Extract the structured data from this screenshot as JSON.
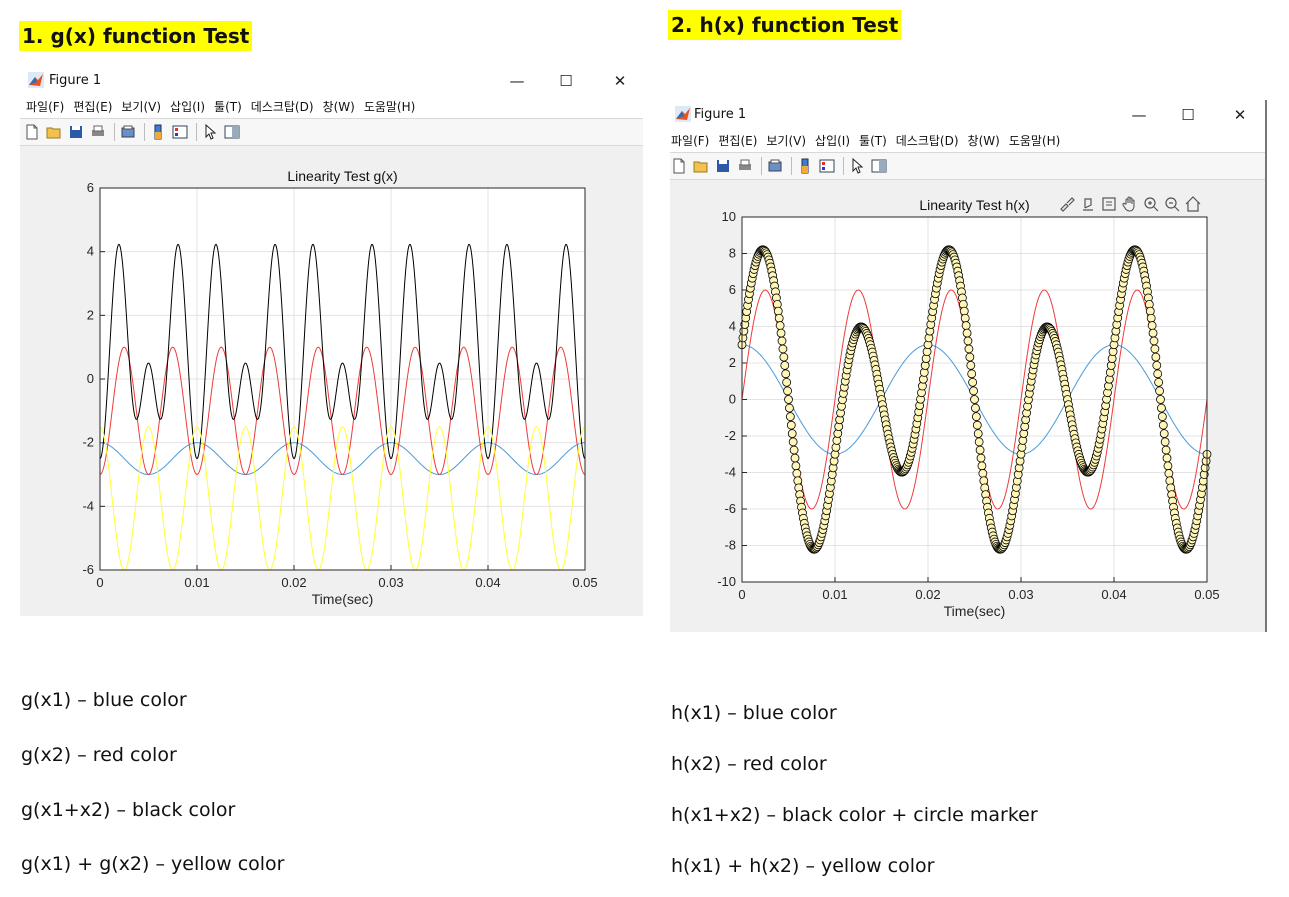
{
  "headings": {
    "g": "1. g(x) function Test",
    "h": "2. h(x) function Test"
  },
  "window": {
    "title": "Figure 1",
    "menu": [
      "파일(F)",
      "편집(E)",
      "보기(V)",
      "삽입(I)",
      "툴(T)",
      "데스크탑(D)",
      "창(W)",
      "도움말(H)"
    ],
    "controls": {
      "minimize": "—",
      "maximize": "☐",
      "close": "✕"
    },
    "toolbar_icons": [
      "new-file-icon",
      "open-folder-icon",
      "save-icon",
      "print-icon",
      "print-preview-icon",
      "colorbar-icon",
      "legend-icon",
      "pointer-icon",
      "property-inspector-icon"
    ],
    "axes_toolbar_icons": [
      "brush-icon",
      "data-tips-icon",
      "restore-icon",
      "pan-icon",
      "zoom-in-icon",
      "zoom-out-icon",
      "home-icon"
    ]
  },
  "chart_data": [
    {
      "type": "line",
      "title": "Linearity Test g(x)",
      "xlabel": "Time(sec)",
      "ylabel": "",
      "xlim": [
        0,
        0.05
      ],
      "ylim": [
        -6,
        6
      ],
      "xticks": [
        "0",
        "0.01",
        "0.02",
        "0.03",
        "0.04",
        "0.05"
      ],
      "yticks": [
        "-6",
        "-4",
        "-2",
        "0",
        "2",
        "4",
        "6"
      ],
      "grid": true,
      "series": [
        {
          "color": "#4a9ad8",
          "curve": {
            "kind": "sine",
            "offset": -2.5,
            "amplitude": 0.5,
            "frequency_hz": 100,
            "phase_deg": 90,
            "samples": 600
          }
        },
        {
          "color": "#ee3b3b",
          "curve": {
            "kind": "sine",
            "offset": -1.0,
            "amplitude": 2.0,
            "frequency_hz": 200,
            "phase_deg": -90,
            "samples": 600
          }
        },
        {
          "color": "#000000",
          "curve": {
            "kind": "sum",
            "offset": 0.75,
            "terms": [
              [
                0.5,
                100,
                90
              ],
              [
                2.0,
                200,
                -90
              ],
              [
                -2.0,
                300,
                90
              ],
              [
                0.25,
                400,
                90
              ]
            ],
            "samples": 900
          }
        },
        {
          "color": "#ffff33",
          "curve": {
            "kind": "sine",
            "offset": -3.75,
            "amplitude": 2.25,
            "frequency_hz": 200,
            "phase_deg": 90,
            "samples": 600
          }
        }
      ]
    },
    {
      "type": "line",
      "title": "Linearity Test h(x)",
      "xlabel": "Time(sec)",
      "ylabel": "",
      "xlim": [
        0,
        0.05
      ],
      "ylim": [
        -10,
        10
      ],
      "xticks": [
        "0",
        "0.01",
        "0.02",
        "0.03",
        "0.04",
        "0.05"
      ],
      "yticks": [
        "-10",
        "-8",
        "-6",
        "-4",
        "-2",
        "0",
        "2",
        "4",
        "6",
        "8",
        "10"
      ],
      "grid": true,
      "series": [
        {
          "color": "#4a9ad8",
          "curve": {
            "kind": "sine",
            "offset": 0,
            "amplitude": 3,
            "frequency_hz": 50,
            "phase_deg": 90,
            "samples": 500
          }
        },
        {
          "color": "#ee3b3b",
          "curve": {
            "kind": "sine",
            "offset": 0,
            "amplitude": 6,
            "frequency_hz": 100,
            "phase_deg": 0,
            "samples": 600
          }
        },
        {
          "color": "#ffff99",
          "curve": {
            "kind": "sum",
            "offset": 0,
            "terms": [
              [
                3,
                50,
                90
              ],
              [
                6,
                100,
                0
              ]
            ],
            "samples": 600
          }
        },
        {
          "color": "#000000",
          "marker": "circle",
          "marker_fill": "#fff6b8",
          "curve": {
            "kind": "sum",
            "offset": 0,
            "terms": [
              [
                3,
                50,
                90
              ],
              [
                6,
                100,
                0
              ]
            ],
            "samples": 501
          }
        }
      ]
    }
  ],
  "notes": {
    "g": [
      "g(x1) – blue color",
      "g(x2) – red color",
      "g(x1+x2) – black color",
      "g(x1) + g(x2) – yellow color"
    ],
    "h": [
      "h(x1) – blue color",
      "h(x2) – red color",
      "h(x1+x2) – black color + circle marker",
      "h(x1) + h(x2) – yellow color"
    ]
  }
}
